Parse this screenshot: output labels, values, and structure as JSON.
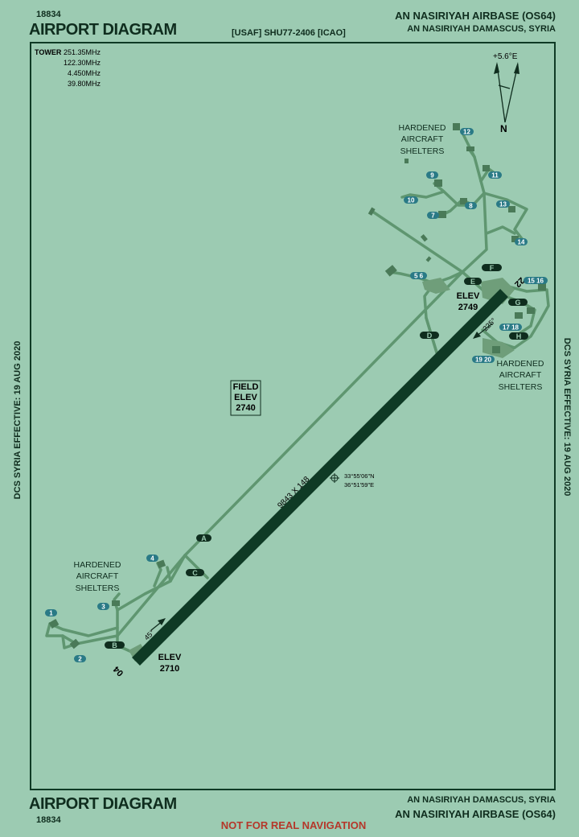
{
  "header": {
    "chart_id": "18834",
    "title": "AIRPORT DIAGRAM",
    "procedure_ref": "[USAF] SHU77-2406 [ICAO]",
    "airport_name": "AN NASIRIYAH AIRBASE (OS64)",
    "city": "AN NASIRIYAH DAMASCUS, SYRIA"
  },
  "footer": {
    "title": "AIRPORT DIAGRAM",
    "chart_id": "18834",
    "city": "AN NASIRIYAH DAMASCUS, SYRIA",
    "airport_name": "AN NASIRIYAH AIRBASE (OS64)",
    "warning": "NOT FOR REAL NAVIGATION"
  },
  "side_notes": {
    "left": "DCS SYRIA EFFECTIVE: 19 AUG 2020",
    "right": "DCS SYRIA EFFECTIVE: 19 AUG 2020"
  },
  "tower": {
    "label": "TOWER",
    "frequencies": [
      "251.35MHz",
      "122.30MHz",
      "4.450MHz",
      "39.80MHz"
    ]
  },
  "north_arrow": {
    "variation": "+5.6°E",
    "label": "N"
  },
  "field_elevation": {
    "lines": [
      "FIELD",
      "ELEV",
      "2740"
    ]
  },
  "runway": {
    "dimensions": "9843 X 148",
    "end_sw": {
      "number": "04",
      "heading": "45°",
      "elev_label": "ELEV",
      "elev": "2710"
    },
    "end_ne": {
      "number": "22",
      "heading": "225°",
      "elev_label": "ELEV",
      "elev": "2749"
    }
  },
  "reference_point": {
    "lat": "33°55'06\"N",
    "lon": "36°51'59\"E"
  },
  "taxiways": [
    "A",
    "B",
    "C",
    "D",
    "E",
    "F",
    "G",
    "H"
  ],
  "shelter_labels": [
    [
      "HARDENED",
      "AIRCRAFT",
      "SHELTERS"
    ],
    [
      "HARDENED",
      "AIRCRAFT",
      "SHELTERS"
    ],
    [
      "HARDENED",
      "AIRCRAFT",
      "SHELTERS"
    ]
  ],
  "parking_spots": [
    "1",
    "2",
    "3",
    "4",
    "5 6",
    "7",
    "8",
    "9",
    "10",
    "11",
    "12",
    "13",
    "14",
    "15 16",
    "17 18",
    "19 20"
  ],
  "colors": {
    "background": "#9ccbb2",
    "runway": "#0f3a25",
    "taxiway": "#5f9670",
    "shelter": "#4a7a58",
    "spot_badge": "#2a7a86",
    "warning": "#b5372a"
  }
}
